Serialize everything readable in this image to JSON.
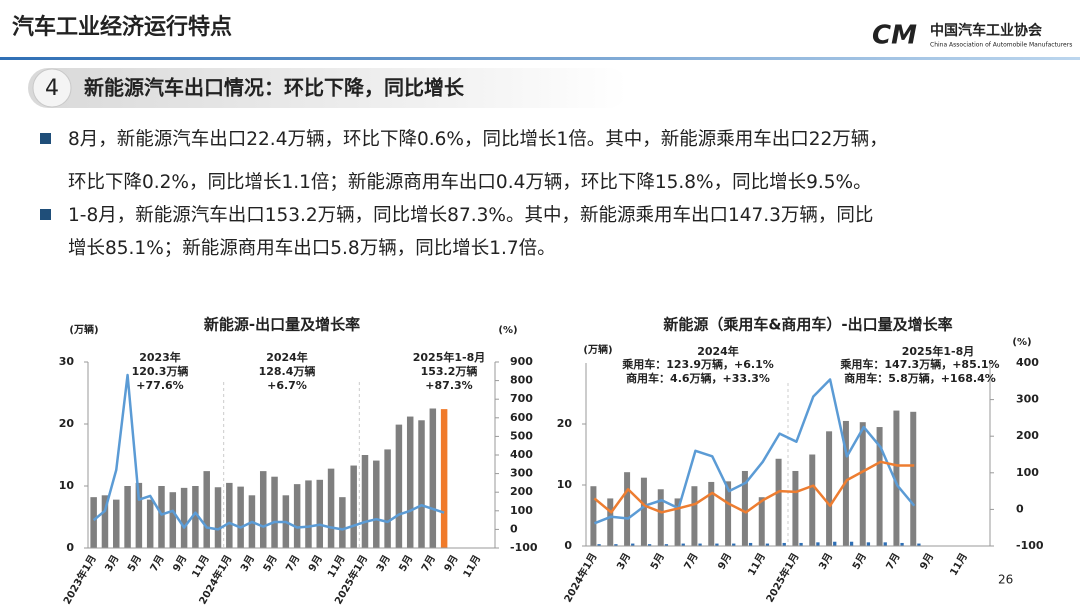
{
  "header": {
    "title": "汽车工业经济运行特点",
    "logo_name": "中国汽车工业协会",
    "logo_subtitle": "China Association of Automobile Manufacturers"
  },
  "section": {
    "number": "4",
    "title": "新能源汽车出口情况：环比下降，同比增长"
  },
  "bullets": [
    {
      "lines": [
        "8月，新能源汽车出口22.4万辆，环比下降0.6%，同比增长1倍。其中，新能源乘用车出口22万辆，",
        "环比下降0.2%，同比增长1.1倍；新能源商用车出口0.4万辆，环比下降15.8%，同比增长9.5%。"
      ]
    },
    {
      "lines": [
        "1-8月，新能源汽车出口153.2万辆，同比增长87.3%。其中，新能源乘用车出口147.3万辆，同比",
        "增长85.1%；新能源商用车出口5.8万辆，同比增长1.7倍。"
      ]
    }
  ],
  "page_number": "26",
  "chart_data": [
    {
      "type": "bar",
      "title": "新能源-出口量及增长率",
      "y_label": "(万辆)",
      "y2_label": "(%)",
      "categories": [
        "2023年1月",
        null,
        "3月",
        null,
        "5月",
        null,
        "7月",
        null,
        "9月",
        null,
        "11月",
        null,
        "2024年1月",
        null,
        "3月",
        null,
        "5月",
        null,
        "7月",
        null,
        "9月",
        null,
        "11月",
        null,
        "2025年1月",
        null,
        "3月",
        null,
        "5月",
        null,
        "7月",
        null,
        "9月",
        null,
        "11月",
        null
      ],
      "series": [
        {
          "type": "bar",
          "colors": [
            "#7f7f7f",
            "#7f7f7f",
            "#7f7f7f",
            "#7f7f7f",
            "#7f7f7f",
            "#7f7f7f",
            "#7f7f7f",
            "#7f7f7f",
            "#7f7f7f",
            "#7f7f7f",
            "#7f7f7f",
            "#7f7f7f",
            "#7f7f7f",
            "#7f7f7f",
            "#7f7f7f",
            "#7f7f7f",
            "#7f7f7f",
            "#7f7f7f",
            "#7f7f7f",
            "#7f7f7f",
            "#7f7f7f",
            "#7f7f7f",
            "#7f7f7f",
            "#7f7f7f",
            "#7f7f7f",
            "#7f7f7f",
            "#7f7f7f",
            "#7f7f7f",
            "#7f7f7f",
            "#7f7f7f",
            "#7f7f7f",
            "#f07a2a",
            null,
            null,
            null,
            null
          ],
          "values": [
            8.2,
            8.5,
            7.8,
            10,
            10.5,
            7.8,
            10,
            9,
            9.7,
            10,
            12.4,
            9.8,
            10.5,
            9.9,
            8.5,
            12.4,
            11.5,
            8.5,
            10.3,
            10.9,
            11,
            12.8,
            8.2,
            13.3,
            15,
            14.1,
            15.9,
            19.9,
            21.2,
            20.6,
            22.5,
            22.4,
            null,
            null,
            null,
            null
          ]
        },
        {
          "type": "line",
          "axis": "y2",
          "color": "#5b9bd5",
          "values": [
            50,
            100,
            320,
            830,
            160,
            180,
            80,
            100,
            10,
            90,
            10,
            0,
            35,
            10,
            40,
            15,
            40,
            40,
            10,
            15,
            25,
            10,
            0,
            20,
            40,
            55,
            40,
            80,
            100,
            130,
            110,
            90,
            null,
            null,
            null,
            null
          ]
        }
      ],
      "ylim": [
        0,
        30
      ],
      "yticks": [
        0,
        10,
        20,
        30
      ],
      "y2lim": [
        -100,
        900
      ],
      "y2ticks": [
        -100,
        0,
        100,
        200,
        300,
        400,
        500,
        600,
        700,
        800,
        900
      ],
      "annotations": [
        "2023年",
        "120.3万辆",
        "+77.6%",
        "2024年",
        "128.4万辆",
        "+6.7%",
        "2025年1-8月",
        "153.2万辆",
        "+87.3%"
      ]
    },
    {
      "type": "bar",
      "title": "新能源（乘用车&商用车）-出口量及增长率",
      "y_label": "(万辆)",
      "y2_label": "(%)",
      "categories": [
        "2024年1月",
        null,
        "3月",
        null,
        "5月",
        null,
        "7月",
        null,
        "9月",
        null,
        "11月",
        null,
        "2025年1月",
        null,
        "3月",
        null,
        "5月",
        null,
        "7月",
        null,
        "9月",
        null,
        "11月",
        null
      ],
      "series": [
        {
          "type": "bar",
          "color": "#808080",
          "values": [
            9.8,
            7.8,
            12.1,
            11.2,
            9.3,
            7.8,
            9.8,
            10.5,
            10.6,
            12.3,
            8,
            14.3,
            12.3,
            15,
            18.8,
            20.5,
            20.3,
            19.5,
            22.2,
            22.0,
            null,
            null,
            null,
            null
          ]
        },
        {
          "type": "bar",
          "color": "#2f6fb5",
          "values": [
            0.3,
            0.3,
            0.4,
            0.3,
            0.3,
            0.4,
            0.4,
            0.4,
            0.4,
            0.5,
            0.4,
            0.5,
            0.5,
            0.6,
            0.7,
            0.7,
            0.6,
            0.6,
            0.5,
            0.4,
            null,
            null,
            null,
            null
          ]
        },
        {
          "type": "line",
          "axis": "y2",
          "color": "#5b9bd5",
          "values": [
            -38,
            -20,
            -25,
            10,
            25,
            3,
            160,
            145,
            50,
            73,
            130,
            207,
            185,
            308,
            355,
            145,
            225,
            170,
            65,
            10,
            null,
            null,
            null,
            null
          ]
        },
        {
          "type": "line",
          "axis": "y2",
          "color": "#ed7d31",
          "values": [
            30,
            -8,
            55,
            10,
            -8,
            3,
            15,
            45,
            15,
            -8,
            25,
            50,
            48,
            65,
            10,
            80,
            105,
            130,
            120,
            120,
            null,
            null,
            null,
            null
          ]
        }
      ],
      "ylim": [
        0,
        30
      ],
      "yticks": [
        0,
        10,
        20
      ],
      "y2lim": [
        -100,
        400
      ],
      "y2ticks": [
        -100,
        0,
        100,
        200,
        300,
        400
      ],
      "annotations": [
        "2024年",
        "乘用车：123.9万辆，+6.1%",
        "商用车：4.6万辆，+33.3%",
        "2025年1-8月",
        "乘用车：147.3万辆，+85.1%",
        "商用车：5.8万辆，+168.4%"
      ]
    }
  ]
}
